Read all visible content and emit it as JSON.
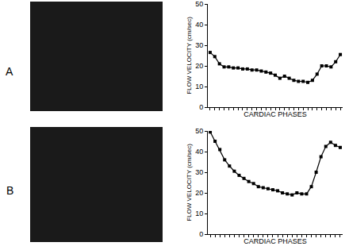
{
  "chart_data": [
    {
      "type": "line",
      "annotation": "A",
      "x_label": "CARDIAC PHASES",
      "y_label": "FLOW VELOCITY (cm/sec)",
      "x": [
        1,
        2,
        3,
        4,
        5,
        6,
        7,
        8,
        9,
        10,
        11,
        12,
        13,
        14,
        15,
        16,
        17,
        18,
        19,
        20,
        21,
        22,
        23,
        24,
        25,
        26,
        27,
        28,
        29
      ],
      "values": [
        26.5,
        24.5,
        21,
        19.5,
        19.5,
        19,
        19,
        18.5,
        18.5,
        18,
        18,
        17.5,
        17,
        16.5,
        15.5,
        14,
        15,
        14,
        13,
        12.5,
        12.5,
        12,
        13,
        16,
        20,
        20,
        19.5,
        22,
        25.5
      ],
      "color": "#000000",
      "marker": "square",
      "line_style": "solid",
      "xlim": [
        0.5,
        29.5
      ],
      "ylim": [
        0,
        50
      ],
      "yticks": [
        0,
        10,
        20,
        30,
        40,
        50
      ],
      "grid": false,
      "tick_labels": "y"
    },
    {
      "type": "line",
      "annotation": "B",
      "x_label": "CARDIAC PHASES",
      "y_label": "FLOW VELOCITY (cm/sec)",
      "x": [
        1,
        2,
        3,
        4,
        5,
        6,
        7,
        8,
        9,
        10,
        11,
        12,
        13,
        14,
        15,
        16,
        17,
        18,
        19,
        20,
        21,
        22,
        23,
        24,
        25,
        26,
        27,
        28
      ],
      "values": [
        49.5,
        45,
        41,
        36,
        33,
        30.5,
        28.5,
        27,
        25.5,
        24.5,
        23,
        22.5,
        22,
        21.5,
        21,
        20,
        19.5,
        19,
        20,
        19.5,
        19.5,
        23,
        30,
        37.5,
        42.5,
        44.5,
        43,
        42
      ],
      "color": "#000000",
      "marker": "square",
      "line_style": "solid",
      "xlim": [
        0.5,
        28.5
      ],
      "ylim": [
        0,
        50
      ],
      "yticks": [
        0,
        10,
        20,
        30,
        40,
        50
      ],
      "grid": false,
      "tick_labels": "y"
    }
  ]
}
